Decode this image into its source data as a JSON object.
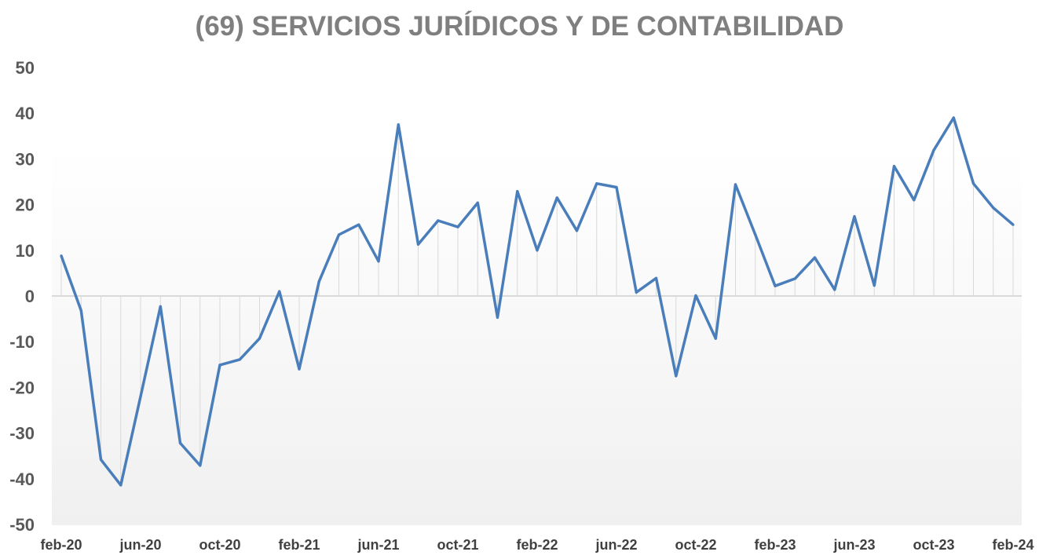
{
  "chart_data": {
    "type": "line",
    "title": "(69) SERVICIOS JURÍDICOS Y DE CONTABILIDAD",
    "xlabel": "",
    "ylabel": "",
    "ylim": [
      -50,
      50
    ],
    "yticks": [
      "50",
      "40",
      "30",
      "20",
      "10",
      "0",
      "-10",
      "-20",
      "-30",
      "-40",
      "-50"
    ],
    "ytick_values": [
      50,
      40,
      30,
      20,
      10,
      0,
      -10,
      -20,
      -30,
      -40,
      -50
    ],
    "x": [
      "feb-20",
      "mar-20",
      "abr-20",
      "may-20",
      "jun-20",
      "jul-20",
      "ago-20",
      "sep-20",
      "oct-20",
      "nov-20",
      "dic-20",
      "ene-21",
      "feb-21",
      "mar-21",
      "abr-21",
      "may-21",
      "jun-21",
      "jul-21",
      "ago-21",
      "sep-21",
      "oct-21",
      "nov-21",
      "dic-21",
      "ene-22",
      "feb-22",
      "mar-22",
      "abr-22",
      "may-22",
      "jun-22",
      "jul-22",
      "ago-22",
      "sep-22",
      "oct-22",
      "nov-22",
      "dic-22",
      "ene-23",
      "feb-23",
      "mar-23",
      "abr-23",
      "may-23",
      "jun-23",
      "jul-23",
      "ago-23",
      "sep-23",
      "oct-23",
      "nov-23",
      "dic-23",
      "ene-24",
      "feb-24"
    ],
    "xtick_labels": [
      "feb-20",
      "jun-20",
      "oct-20",
      "feb-21",
      "jun-21",
      "oct-21",
      "feb-22",
      "jun-22",
      "oct-22",
      "feb-23",
      "jun-23",
      "oct-23",
      "feb-24"
    ],
    "series": [
      {
        "name": "(69) SERVICIOS JURÍDICOS Y DE CONTABILIDAD",
        "color": "#4a7ebb",
        "values": [
          8.8,
          -3.2,
          -35.8,
          -41.4,
          -22.0,
          -2.3,
          -32.2,
          -37.1,
          -15.1,
          -13.9,
          -9.3,
          1.0,
          -16.0,
          3.2,
          13.4,
          15.6,
          7.6,
          37.5,
          11.3,
          16.5,
          15.1,
          20.4,
          -4.7,
          22.9,
          10.0,
          21.5,
          14.3,
          24.6,
          23.8,
          0.8,
          3.9,
          -17.5,
          0.1,
          -9.3,
          24.4,
          13.4,
          2.2,
          3.8,
          8.4,
          1.4,
          17.4,
          2.3,
          28.4,
          21.0,
          31.9,
          39.0,
          24.6,
          19.3,
          15.6
        ]
      }
    ],
    "colors": {
      "line": "#4a7ebb",
      "grid": "#d9d9d9",
      "zero_line": "#d9d9d9",
      "title": "#7f7f7f",
      "tick": "#595959"
    }
  }
}
